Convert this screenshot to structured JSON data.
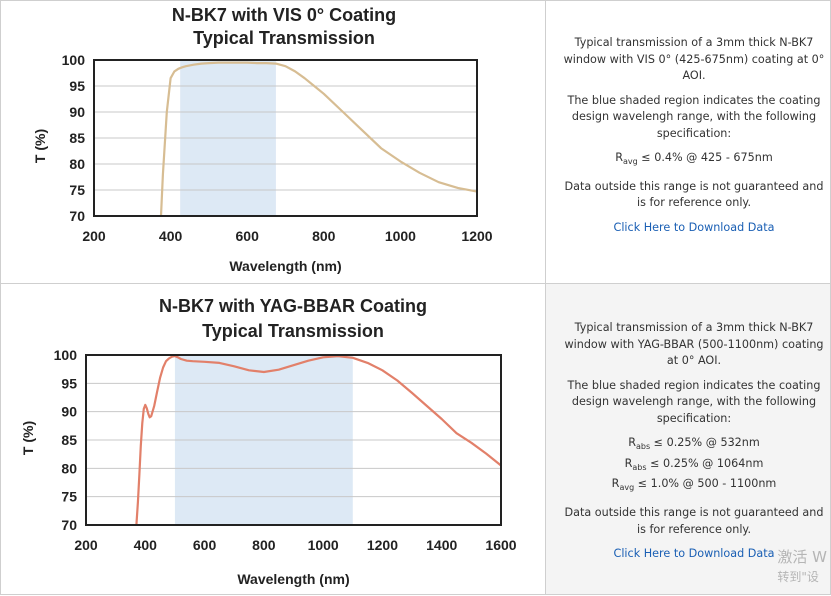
{
  "chart_data": [
    {
      "type": "line",
      "title": "N-BK7 with VIS 0° Coating",
      "subtitle": "Typical Transmission",
      "xlabel": "Wavelength (nm)",
      "ylabel": "T (%)",
      "xlim": [
        200,
        1200
      ],
      "ylim": [
        70,
        100
      ],
      "xticks": [
        "200",
        "400",
        "600",
        "800",
        "1000",
        "1200"
      ],
      "yticks": [
        "100",
        "95",
        "90",
        "85",
        "80",
        "75",
        "70"
      ],
      "grid": true,
      "shaded_region": [
        425,
        675
      ],
      "shaded_color": "#dde9f5",
      "line_color": "#d7bd93",
      "series": [
        {
          "x": [
            375,
            380,
            390,
            400,
            410,
            420,
            430,
            440,
            460,
            480,
            500,
            525,
            550,
            575,
            600,
            625,
            650,
            675,
            700,
            725,
            750,
            775,
            800,
            850,
            900,
            950,
            1000,
            1050,
            1100,
            1150,
            1200
          ],
          "y": [
            70,
            78,
            90,
            96.5,
            97.8,
            98.3,
            98.6,
            98.8,
            99.1,
            99.3,
            99.4,
            99.5,
            99.5,
            99.5,
            99.5,
            99.4,
            99.4,
            99.3,
            98.8,
            97.8,
            96.5,
            95.0,
            93.5,
            90.0,
            86.5,
            83.0,
            80.5,
            78.3,
            76.5,
            75.4,
            74.7
          ]
        }
      ]
    },
    {
      "type": "line",
      "title": "N-BK7 with YAG-BBAR Coating",
      "subtitle": "Typical Transmission",
      "xlabel": "Wavelength (nm)",
      "ylabel": "T (%)",
      "xlim": [
        200,
        1600
      ],
      "ylim": [
        70,
        100
      ],
      "xticks": [
        "200",
        "400",
        "600",
        "800",
        "1000",
        "1200",
        "1400",
        "1600"
      ],
      "yticks": [
        "100",
        "95",
        "90",
        "85",
        "80",
        "75",
        "70"
      ],
      "grid": true,
      "shaded_region": [
        500,
        1100
      ],
      "shaded_color": "#dde9f5",
      "line_color": "#e2806a",
      "series": [
        {
          "x": [
            370,
            375,
            380,
            385,
            390,
            395,
            400,
            405,
            410,
            415,
            420,
            430,
            440,
            450,
            460,
            470,
            480,
            490,
            500,
            510,
            520,
            540,
            560,
            600,
            650,
            700,
            750,
            800,
            850,
            900,
            950,
            1000,
            1050,
            1100,
            1150,
            1200,
            1250,
            1300,
            1350,
            1400,
            1450,
            1500,
            1550,
            1600
          ],
          "y": [
            70,
            74,
            79,
            84,
            88,
            90.5,
            91.2,
            90.6,
            89.6,
            89.0,
            89.2,
            91.0,
            93.5,
            96.0,
            97.8,
            98.9,
            99.4,
            99.7,
            99.8,
            99.6,
            99.3,
            99.0,
            98.9,
            98.8,
            98.6,
            98.0,
            97.3,
            97.0,
            97.4,
            98.2,
            99.0,
            99.6,
            99.8,
            99.5,
            98.6,
            97.3,
            95.5,
            93.3,
            91.0,
            88.7,
            86.2,
            84.5,
            82.6,
            80.5
          ]
        }
      ]
    }
  ],
  "info": [
    {
      "description": "Typical transmission of a 3mm thick N-BK7 window with VIS 0° (425-675nm) coating at 0° AOI.",
      "shaded_note": "The blue shaded region indicates the coating design wavelengh range, with the following specification:",
      "specs": [
        {
          "symbol": "R",
          "sub": "avg",
          "text": " ≤ 0.4% @ 425 - 675nm"
        }
      ],
      "disclaimer": "Data outside this range is not guaranteed and is for reference only.",
      "link": "Click Here to Download Data"
    },
    {
      "description": "Typical transmission of a 3mm thick N-BK7 window with YAG-BBAR (500-1100nm) coating at 0° AOI.",
      "shaded_note": "The blue shaded region indicates the coating design wavelengh range, with the following specification:",
      "specs": [
        {
          "symbol": "R",
          "sub": "abs",
          "text": " ≤ 0.25% @ 532nm"
        },
        {
          "symbol": "R",
          "sub": "abs",
          "text": " ≤ 0.25% @ 1064nm"
        },
        {
          "symbol": "R",
          "sub": "avg",
          "text": " ≤ 1.0% @ 500 - 1100nm"
        }
      ],
      "disclaimer": "Data outside this range is not guaranteed and is for reference only.",
      "link": "Click Here to Download Data"
    }
  ],
  "watermark": {
    "line1": "激活 W",
    "line2": "转到\"设"
  }
}
